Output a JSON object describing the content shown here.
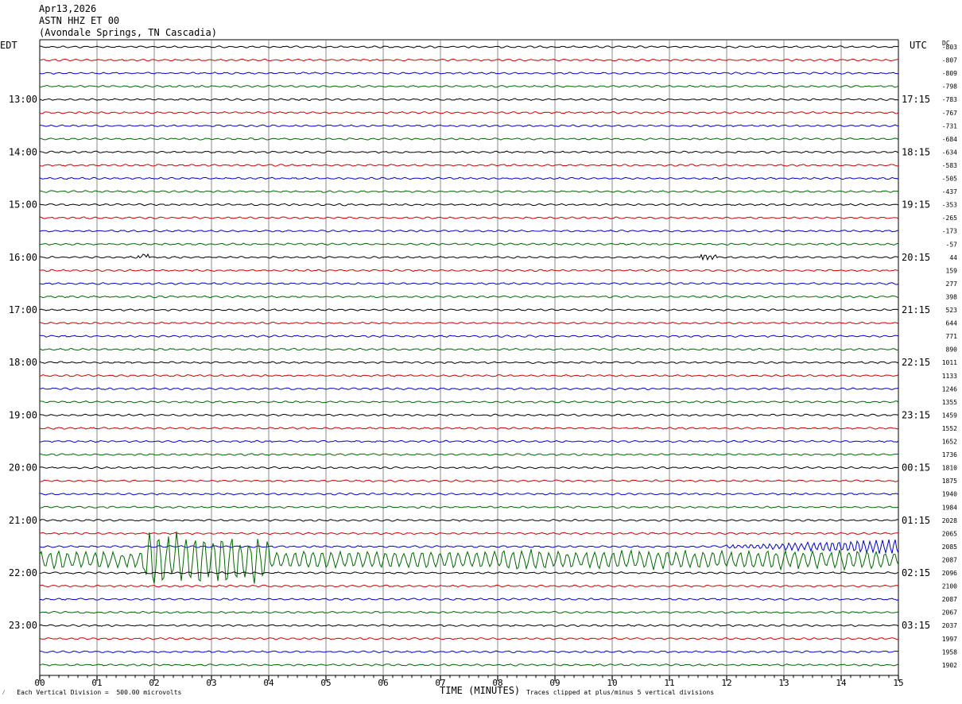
{
  "header": {
    "date": "Apr13,2026",
    "station": "ASTN HHZ ET 00",
    "location": "(Avondale Springs, TN Cascadia)"
  },
  "left_tz": "EDT",
  "right_tz": "UTC",
  "dc_header": "DC",
  "footer": {
    "scale_note": "Each Vertical Division =  500.00 microvolts",
    "xlabel": "TIME (MINUTES)",
    "clip_note": "Traces clipped at plus/minus 5 vertical divisions"
  },
  "colors": {
    "trace_cycle": [
      "#000000",
      "#cc0000",
      "#0000cc",
      "#006600"
    ],
    "grid": "#888888"
  },
  "chart_data": {
    "type": "line",
    "title": "ASTN HHZ ET 00",
    "xlabel": "TIME (MINUTES)",
    "xlim": [
      0,
      15
    ],
    "x_ticks": [
      "00",
      "01",
      "02",
      "03",
      "04",
      "05",
      "06",
      "07",
      "08",
      "09",
      "10",
      "11",
      "12",
      "13",
      "14",
      "15"
    ],
    "traces_per_hour": 4,
    "left_hour_labels": [
      {
        "row": 4,
        "label": "13:00"
      },
      {
        "row": 8,
        "label": "14:00"
      },
      {
        "row": 12,
        "label": "15:00"
      },
      {
        "row": 16,
        "label": "16:00"
      },
      {
        "row": 20,
        "label": "17:00"
      },
      {
        "row": 24,
        "label": "18:00"
      },
      {
        "row": 28,
        "label": "19:00"
      },
      {
        "row": 32,
        "label": "20:00"
      },
      {
        "row": 36,
        "label": "21:00"
      },
      {
        "row": 40,
        "label": "22:00"
      },
      {
        "row": 44,
        "label": "23:00"
      }
    ],
    "right_hour_labels": [
      {
        "row": 4,
        "label": "17:15"
      },
      {
        "row": 8,
        "label": "18:15"
      },
      {
        "row": 12,
        "label": "19:15"
      },
      {
        "row": 16,
        "label": "20:15"
      },
      {
        "row": 20,
        "label": "21:15"
      },
      {
        "row": 24,
        "label": "22:15"
      },
      {
        "row": 28,
        "label": "23:15"
      },
      {
        "row": 32,
        "label": "00:15"
      },
      {
        "row": 36,
        "label": "01:15"
      },
      {
        "row": 40,
        "label": "02:15"
      },
      {
        "row": 44,
        "label": "03:15"
      }
    ],
    "dc_offsets": [
      "-803",
      "-807",
      "-809",
      "-798",
      "-783",
      "-767",
      "-731",
      "-684",
      "-634",
      "-583",
      "-505",
      "-437",
      "-353",
      "-265",
      "-173",
      "-57",
      "44",
      "159",
      "277",
      "398",
      "523",
      "644",
      "771",
      "890",
      "1011",
      "1133",
      "1246",
      "1355",
      "1459",
      "1552",
      "1652",
      "1736",
      "1810",
      "1875",
      "1940",
      "1984",
      "2028",
      "2065",
      "2085",
      "2087",
      "2096",
      "2100",
      "2087",
      "2067",
      "2037",
      "1997",
      "1958",
      "1902"
    ],
    "events": [
      {
        "row": 16,
        "start_min": 1.7,
        "end_min": 1.95,
        "amplitude": "small"
      },
      {
        "row": 16,
        "start_min": 11.55,
        "end_min": 11.85,
        "amplitude": "small"
      },
      {
        "row": 39,
        "start_min": 0.0,
        "end_min": 15.0,
        "amplitude": "large, clipped 1.8–4.0 min"
      },
      {
        "row": 38,
        "start_min": 12.0,
        "end_min": 15.0,
        "amplitude": "moderate"
      }
    ],
    "grid": true
  }
}
